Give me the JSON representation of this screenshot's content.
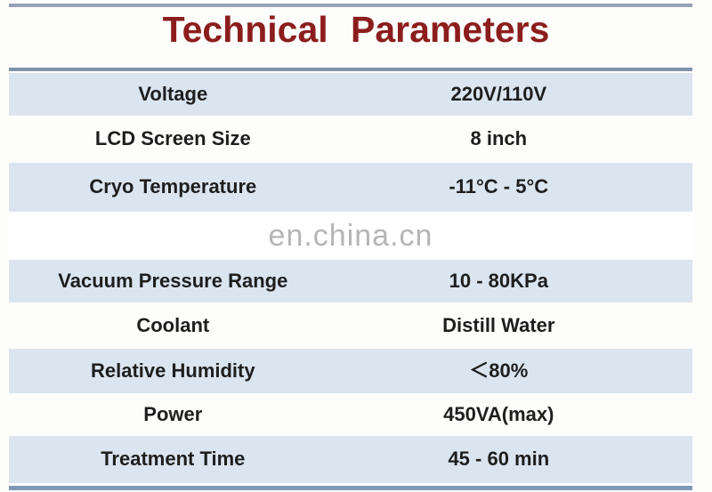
{
  "title": "Technical Parameters",
  "watermark": "en.china.cn",
  "colors": {
    "title": "#8c1d1d",
    "row_shade": "#dbe5f0",
    "divider": "#8496b0",
    "text": "#1e1e1e",
    "watermark": "#b5b5b5"
  },
  "table": {
    "rows": [
      {
        "label": "Voltage",
        "value": "220V/110V"
      },
      {
        "label": "LCD Screen Size",
        "value": "8 inch"
      },
      {
        "label": "Cryo Temperature",
        "value": "-11°C - 5°C"
      },
      {
        "label": "Vacuum Pressure Range",
        "value": "10 - 80KPa"
      },
      {
        "label": "Coolant",
        "value": "Distill Water"
      },
      {
        "label": "Relative Humidity",
        "value": "＜80%"
      },
      {
        "label": "Power",
        "value": "450VA(max)"
      },
      {
        "label": "Treatment Time",
        "value": "45 - 60 min"
      }
    ]
  }
}
